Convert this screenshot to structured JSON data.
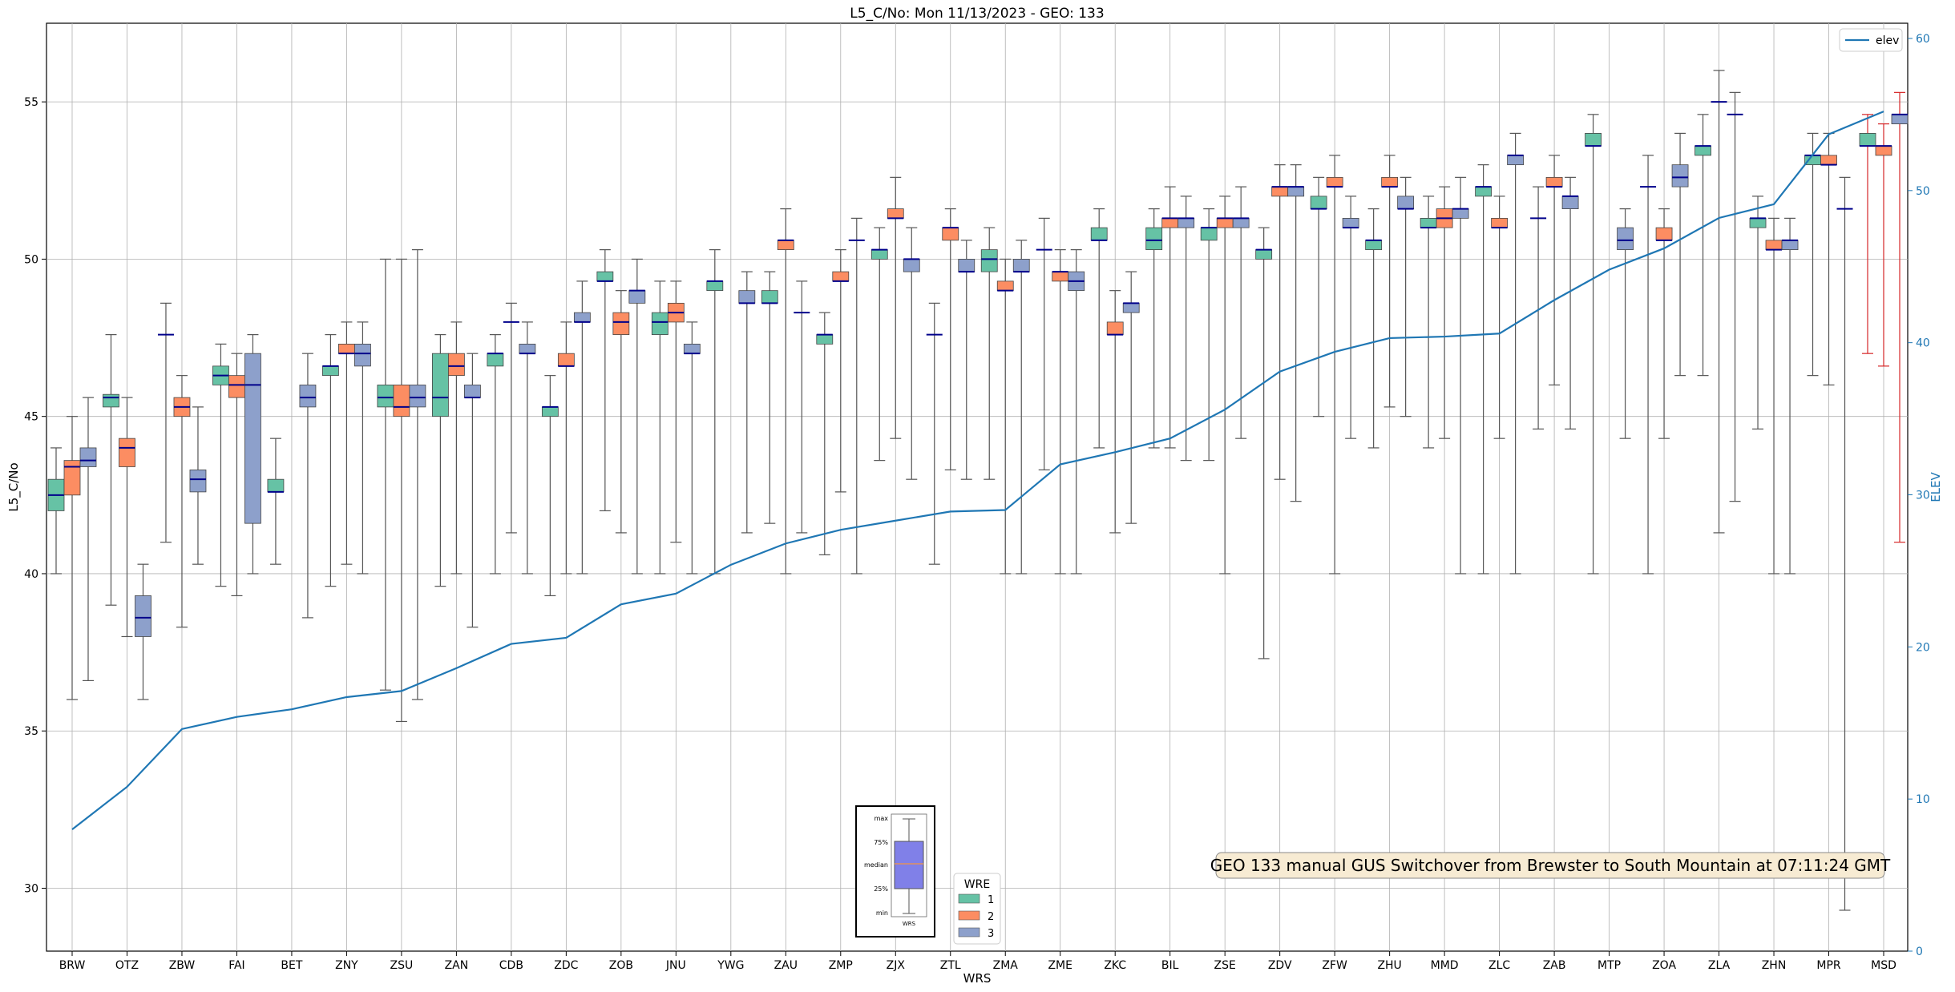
{
  "chart_data": {
    "type": "box",
    "title": "L5_C/No: Mon 11/13/2023 - GEO: 133",
    "xlabel": "WRS",
    "ylabel": "L5_C/No",
    "y2label": "ELEV",
    "ylim": [
      28,
      57.5
    ],
    "y2lim": [
      0,
      61
    ],
    "yticks": [
      30,
      35,
      40,
      45,
      50,
      55
    ],
    "y2ticks": [
      0,
      10,
      20,
      30,
      40,
      50,
      60
    ],
    "grid": true,
    "categories": [
      "BRW",
      "OTZ",
      "ZBW",
      "FAI",
      "BET",
      "ZNY",
      "ZSU",
      "ZAN",
      "CDB",
      "ZDC",
      "ZOB",
      "JNU",
      "YWG",
      "ZAU",
      "ZMP",
      "ZJX",
      "ZTL",
      "ZMA",
      "ZME",
      "ZKC",
      "BIL",
      "ZSE",
      "ZDV",
      "ZFW",
      "ZHU",
      "MMD",
      "ZLC",
      "ZAB",
      "MTP",
      "ZOA",
      "ZLA",
      "ZHN",
      "MPR",
      "MSD"
    ],
    "legend_wre": {
      "title": "WRE",
      "placement": "bottom-center",
      "entries": [
        "1",
        "2",
        "3"
      ]
    },
    "legend_elev": {
      "label": "elev",
      "placement": "top-right"
    },
    "inset_labels": [
      "max",
      "75%",
      "median",
      "25%",
      "min",
      "WRS"
    ],
    "annotation": "GEO 133 manual GUS Switchover from Brewster to South Mountain at 07:11:24 GMT",
    "colors": {
      "wre1": "#66c2a5",
      "wre2": "#fc8d62",
      "wre3": "#8da0cb",
      "median": "#00008b",
      "elev": "#1f77b4",
      "whisker": "#555555",
      "whisker_red": "#d62728"
    },
    "elev": [
      8,
      10.8,
      14.6,
      15.4,
      15.9,
      16.7,
      17.1,
      18.6,
      20.2,
      20.6,
      22.8,
      23.5,
      25.4,
      26.8,
      27.7,
      28.3,
      28.9,
      29.0,
      32.0,
      32.8,
      33.7,
      35.6,
      38.1,
      39.4,
      40.3,
      40.4,
      40.6,
      42.8,
      44.8,
      46.2,
      48.2,
      49.1,
      53.7,
      55.2
    ],
    "boxes": [
      {
        "cat": "BRW",
        "wre": 1,
        "min": 40,
        "q1": 42,
        "med": 42.5,
        "q3": 43,
        "max": 44
      },
      {
        "cat": "BRW",
        "wre": 2,
        "min": 36,
        "q1": 42.5,
        "med": 43.4,
        "q3": 43.6,
        "max": 45
      },
      {
        "cat": "BRW",
        "wre": 3,
        "min": 36.6,
        "q1": 43.4,
        "med": 43.6,
        "q3": 44,
        "max": 45.6
      },
      {
        "cat": "OTZ",
        "wre": 1,
        "min": 39,
        "q1": 45.3,
        "med": 45.6,
        "q3": 45.7,
        "max": 47.6
      },
      {
        "cat": "OTZ",
        "wre": 2,
        "min": 38,
        "q1": 43.4,
        "med": 44,
        "q3": 44.3,
        "max": 45.6
      },
      {
        "cat": "OTZ",
        "wre": 3,
        "min": 36,
        "q1": 38,
        "med": 38.6,
        "q3": 39.3,
        "max": 40.3
      },
      {
        "cat": "ZBW",
        "wre": 1,
        "min": 41,
        "q1": 47.6,
        "med": 47.6,
        "q3": 47.6,
        "max": 48.6
      },
      {
        "cat": "ZBW",
        "wre": 2,
        "min": 38.3,
        "q1": 45,
        "med": 45.3,
        "q3": 45.6,
        "max": 46.3
      },
      {
        "cat": "ZBW",
        "wre": 3,
        "min": 40.3,
        "q1": 42.6,
        "med": 43,
        "q3": 43.3,
        "max": 45.3
      },
      {
        "cat": "FAI",
        "wre": 1,
        "min": 39.6,
        "q1": 46,
        "med": 46.3,
        "q3": 46.6,
        "max": 47.3
      },
      {
        "cat": "FAI",
        "wre": 2,
        "min": 39.3,
        "q1": 45.6,
        "med": 46,
        "q3": 46.3,
        "max": 47
      },
      {
        "cat": "FAI",
        "wre": 3,
        "min": 40,
        "q1": 41.6,
        "med": 46,
        "q3": 47,
        "max": 47.6
      },
      {
        "cat": "BET",
        "wre": 1,
        "min": 40.3,
        "q1": 42.6,
        "med": 42.6,
        "q3": 43,
        "max": 44.3
      },
      {
        "cat": "BET",
        "wre": 3,
        "min": 38.6,
        "q1": 45.3,
        "med": 45.6,
        "q3": 46,
        "max": 47
      },
      {
        "cat": "ZNY",
        "wre": 1,
        "min": 39.6,
        "q1": 46.3,
        "med": 46.6,
        "q3": 46.6,
        "max": 47.6
      },
      {
        "cat": "ZNY",
        "wre": 2,
        "min": 40.3,
        "q1": 47,
        "med": 47,
        "q3": 47.3,
        "max": 48
      },
      {
        "cat": "ZNY",
        "wre": 3,
        "min": 40,
        "q1": 46.6,
        "med": 47,
        "q3": 47.3,
        "max": 48
      },
      {
        "cat": "ZSU",
        "wre": 1,
        "min": 36.3,
        "q1": 45.3,
        "med": 45.6,
        "q3": 46,
        "max": 50
      },
      {
        "cat": "ZSU",
        "wre": 2,
        "min": 35.3,
        "q1": 45,
        "med": 45.3,
        "q3": 46,
        "max": 50
      },
      {
        "cat": "ZSU",
        "wre": 3,
        "min": 36,
        "q1": 45.3,
        "med": 45.6,
        "q3": 46,
        "max": 50.3
      },
      {
        "cat": "ZAN",
        "wre": 1,
        "min": 39.6,
        "q1": 45,
        "med": 45.6,
        "q3": 47,
        "max": 47.6
      },
      {
        "cat": "ZAN",
        "wre": 2,
        "min": 40,
        "q1": 46.3,
        "med": 46.6,
        "q3": 47,
        "max": 48
      },
      {
        "cat": "ZAN",
        "wre": 3,
        "min": 38.3,
        "q1": 45.6,
        "med": 45.6,
        "q3": 46,
        "max": 47
      },
      {
        "cat": "CDB",
        "wre": 1,
        "min": 40,
        "q1": 46.6,
        "med": 47,
        "q3": 47,
        "max": 47.6
      },
      {
        "cat": "CDB",
        "wre": 2,
        "min": 41.3,
        "q1": 48,
        "med": 48,
        "q3": 48,
        "max": 48.6
      },
      {
        "cat": "CDB",
        "wre": 3,
        "min": 40,
        "q1": 47,
        "med": 47,
        "q3": 47.3,
        "max": 48
      },
      {
        "cat": "ZDC",
        "wre": 1,
        "min": 39.3,
        "q1": 45,
        "med": 45.3,
        "q3": 45.3,
        "max": 46.3
      },
      {
        "cat": "ZDC",
        "wre": 2,
        "min": 40,
        "q1": 46.6,
        "med": 46.6,
        "q3": 47,
        "max": 48
      },
      {
        "cat": "ZDC",
        "wre": 3,
        "min": 40,
        "q1": 48,
        "med": 48,
        "q3": 48.3,
        "max": 49.3
      },
      {
        "cat": "ZOB",
        "wre": 1,
        "min": 42,
        "q1": 49.3,
        "med": 49.3,
        "q3": 49.6,
        "max": 50.3
      },
      {
        "cat": "ZOB",
        "wre": 2,
        "min": 41.3,
        "q1": 47.6,
        "med": 48,
        "q3": 48.3,
        "max": 49
      },
      {
        "cat": "ZOB",
        "wre": 3,
        "min": 40,
        "q1": 48.6,
        "med": 49,
        "q3": 49,
        "max": 50
      },
      {
        "cat": "JNU",
        "wre": 1,
        "min": 40,
        "q1": 47.6,
        "med": 48,
        "q3": 48.3,
        "max": 49.3
      },
      {
        "cat": "JNU",
        "wre": 2,
        "min": 41,
        "q1": 48,
        "med": 48.3,
        "q3": 48.6,
        "max": 49.3
      },
      {
        "cat": "JNU",
        "wre": 3,
        "min": 40,
        "q1": 47,
        "med": 47,
        "q3": 47.3,
        "max": 48
      },
      {
        "cat": "YWG",
        "wre": 1,
        "min": 40,
        "q1": 49,
        "med": 49.3,
        "q3": 49.3,
        "max": 50.3
      },
      {
        "cat": "YWG",
        "wre": 3,
        "min": 41.3,
        "q1": 48.6,
        "med": 48.6,
        "q3": 49,
        "max": 49.6
      },
      {
        "cat": "ZAU",
        "wre": 1,
        "min": 41.6,
        "q1": 48.6,
        "med": 48.6,
        "q3": 49,
        "max": 49.6
      },
      {
        "cat": "ZAU",
        "wre": 2,
        "min": 40,
        "q1": 50.3,
        "med": 50.6,
        "q3": 50.6,
        "max": 51.6
      },
      {
        "cat": "ZAU",
        "wre": 3,
        "min": 41.3,
        "q1": 48.3,
        "med": 48.3,
        "q3": 48.3,
        "max": 49.3
      },
      {
        "cat": "ZMP",
        "wre": 1,
        "min": 40.6,
        "q1": 47.3,
        "med": 47.6,
        "q3": 47.6,
        "max": 48.3
      },
      {
        "cat": "ZMP",
        "wre": 2,
        "min": 42.6,
        "q1": 49.3,
        "med": 49.3,
        "q3": 49.6,
        "max": 50.3
      },
      {
        "cat": "ZMP",
        "wre": 3,
        "min": 40,
        "q1": 50.6,
        "med": 50.6,
        "q3": 50.6,
        "max": 51.3
      },
      {
        "cat": "ZJX",
        "wre": 1,
        "min": 43.6,
        "q1": 50,
        "med": 50.3,
        "q3": 50.3,
        "max": 51
      },
      {
        "cat": "ZJX",
        "wre": 2,
        "min": 44.3,
        "q1": 51.3,
        "med": 51.3,
        "q3": 51.6,
        "max": 52.6
      },
      {
        "cat": "ZJX",
        "wre": 3,
        "min": 43,
        "q1": 49.6,
        "med": 50,
        "q3": 50,
        "max": 51
      },
      {
        "cat": "ZTL",
        "wre": 1,
        "min": 40.3,
        "q1": 47.6,
        "med": 47.6,
        "q3": 47.6,
        "max": 48.6
      },
      {
        "cat": "ZTL",
        "wre": 2,
        "min": 43.3,
        "q1": 50.6,
        "med": 51,
        "q3": 51,
        "max": 51.6
      },
      {
        "cat": "ZTL",
        "wre": 3,
        "min": 43,
        "q1": 49.6,
        "med": 49.6,
        "q3": 50,
        "max": 50.6
      },
      {
        "cat": "ZMA",
        "wre": 1,
        "min": 43,
        "q1": 49.6,
        "med": 50,
        "q3": 50.3,
        "max": 51
      },
      {
        "cat": "ZMA",
        "wre": 2,
        "min": 40,
        "q1": 49,
        "med": 49,
        "q3": 49.3,
        "max": 50
      },
      {
        "cat": "ZMA",
        "wre": 3,
        "min": 40,
        "q1": 49.6,
        "med": 49.6,
        "q3": 50,
        "max": 50.6
      },
      {
        "cat": "ZME",
        "wre": 1,
        "min": 43.3,
        "q1": 50.3,
        "med": 50.3,
        "q3": 50.3,
        "max": 51.3
      },
      {
        "cat": "ZME",
        "wre": 2,
        "min": 40,
        "q1": 49.3,
        "med": 49.6,
        "q3": 49.6,
        "max": 50.3
      },
      {
        "cat": "ZME",
        "wre": 3,
        "min": 40,
        "q1": 49,
        "med": 49.3,
        "q3": 49.6,
        "max": 50.3
      },
      {
        "cat": "ZKC",
        "wre": 1,
        "min": 44,
        "q1": 50.6,
        "med": 50.6,
        "q3": 51,
        "max": 51.6
      },
      {
        "cat": "ZKC",
        "wre": 2,
        "min": 41.3,
        "q1": 47.6,
        "med": 47.6,
        "q3": 48,
        "max": 49
      },
      {
        "cat": "ZKC",
        "wre": 3,
        "min": 41.6,
        "q1": 48.3,
        "med": 48.6,
        "q3": 48.6,
        "max": 49.6
      },
      {
        "cat": "BIL",
        "wre": 1,
        "min": 44,
        "q1": 50.3,
        "med": 50.6,
        "q3": 51,
        "max": 51.6
      },
      {
        "cat": "BIL",
        "wre": 2,
        "min": 44,
        "q1": 51,
        "med": 51.3,
        "q3": 51.3,
        "max": 52.3
      },
      {
        "cat": "BIL",
        "wre": 3,
        "min": 43.6,
        "q1": 51,
        "med": 51.3,
        "q3": 51.3,
        "max": 52
      },
      {
        "cat": "ZSE",
        "wre": 1,
        "min": 43.6,
        "q1": 50.6,
        "med": 51,
        "q3": 51,
        "max": 51.6
      },
      {
        "cat": "ZSE",
        "wre": 2,
        "min": 40,
        "q1": 51,
        "med": 51.3,
        "q3": 51.3,
        "max": 52
      },
      {
        "cat": "ZSE",
        "wre": 3,
        "min": 44.3,
        "q1": 51,
        "med": 51.3,
        "q3": 51.3,
        "max": 52.3
      },
      {
        "cat": "ZDV",
        "wre": 1,
        "min": 37.3,
        "q1": 50,
        "med": 50.3,
        "q3": 50.3,
        "max": 51
      },
      {
        "cat": "ZDV",
        "wre": 2,
        "min": 43,
        "q1": 52,
        "med": 52.3,
        "q3": 52.3,
        "max": 53
      },
      {
        "cat": "ZDV",
        "wre": 3,
        "min": 42.3,
        "q1": 52,
        "med": 52.3,
        "q3": 52.3,
        "max": 53
      },
      {
        "cat": "ZFW",
        "wre": 1,
        "min": 45,
        "q1": 51.6,
        "med": 51.6,
        "q3": 52,
        "max": 52.6
      },
      {
        "cat": "ZFW",
        "wre": 2,
        "min": 40,
        "q1": 52.3,
        "med": 52.3,
        "q3": 52.6,
        "max": 53.3
      },
      {
        "cat": "ZFW",
        "wre": 3,
        "min": 44.3,
        "q1": 51,
        "med": 51,
        "q3": 51.3,
        "max": 52
      },
      {
        "cat": "ZHU",
        "wre": 1,
        "min": 44,
        "q1": 50.3,
        "med": 50.6,
        "q3": 50.6,
        "max": 51.6
      },
      {
        "cat": "ZHU",
        "wre": 2,
        "min": 45.3,
        "q1": 52.3,
        "med": 52.3,
        "q3": 52.6,
        "max": 53.3
      },
      {
        "cat": "ZHU",
        "wre": 3,
        "min": 45,
        "q1": 51.6,
        "med": 51.6,
        "q3": 52,
        "max": 52.6
      },
      {
        "cat": "MMD",
        "wre": 1,
        "min": 44,
        "q1": 51,
        "med": 51,
        "q3": 51.3,
        "max": 52
      },
      {
        "cat": "MMD",
        "wre": 2,
        "min": 44.3,
        "q1": 51,
        "med": 51.3,
        "q3": 51.6,
        "max": 52.3
      },
      {
        "cat": "MMD",
        "wre": 3,
        "min": 40,
        "q1": 51.3,
        "med": 51.6,
        "q3": 51.6,
        "max": 52.6
      },
      {
        "cat": "ZLC",
        "wre": 1,
        "min": 40,
        "q1": 52,
        "med": 52.3,
        "q3": 52.3,
        "max": 53
      },
      {
        "cat": "ZLC",
        "wre": 2,
        "min": 44.3,
        "q1": 51,
        "med": 51,
        "q3": 51.3,
        "max": 52
      },
      {
        "cat": "ZLC",
        "wre": 3,
        "min": 40,
        "q1": 53,
        "med": 53.3,
        "q3": 53.3,
        "max": 54
      },
      {
        "cat": "ZAB",
        "wre": 1,
        "min": 44.6,
        "q1": 51.3,
        "med": 51.3,
        "q3": 51.3,
        "max": 52.3
      },
      {
        "cat": "ZAB",
        "wre": 2,
        "min": 46,
        "q1": 52.3,
        "med": 52.3,
        "q3": 52.6,
        "max": 53.3
      },
      {
        "cat": "ZAB",
        "wre": 3,
        "min": 44.6,
        "q1": 51.6,
        "med": 52,
        "q3": 52,
        "max": 52.6
      },
      {
        "cat": "MTP",
        "wre": 1,
        "min": 40,
        "q1": 53.6,
        "med": 53.6,
        "q3": 54,
        "max": 54.6
      },
      {
        "cat": "MTP",
        "wre": 3,
        "min": 44.3,
        "q1": 50.3,
        "med": 50.6,
        "q3": 51,
        "max": 51.6
      },
      {
        "cat": "ZOA",
        "wre": 1,
        "min": 40,
        "q1": 52.3,
        "med": 52.3,
        "q3": 52.3,
        "max": 53.3
      },
      {
        "cat": "ZOA",
        "wre": 2,
        "min": 44.3,
        "q1": 50.6,
        "med": 50.6,
        "q3": 51,
        "max": 51.6
      },
      {
        "cat": "ZOA",
        "wre": 3,
        "min": 46.3,
        "q1": 52.3,
        "med": 52.6,
        "q3": 53,
        "max": 54
      },
      {
        "cat": "ZLA",
        "wre": 1,
        "min": 46.3,
        "q1": 53.3,
        "med": 53.6,
        "q3": 53.6,
        "max": 54.6
      },
      {
        "cat": "ZLA",
        "wre": 2,
        "min": 41.3,
        "q1": 55,
        "med": 55,
        "q3": 55,
        "max": 56
      },
      {
        "cat": "ZLA",
        "wre": 3,
        "min": 42.3,
        "q1": 54.6,
        "med": 54.6,
        "q3": 54.6,
        "max": 55.3
      },
      {
        "cat": "ZHN",
        "wre": 1,
        "min": 44.6,
        "q1": 51,
        "med": 51.3,
        "q3": 51.3,
        "max": 52
      },
      {
        "cat": "ZHN",
        "wre": 2,
        "min": 40,
        "q1": 50.3,
        "med": 50.3,
        "q3": 50.6,
        "max": 51.3
      },
      {
        "cat": "ZHN",
        "wre": 3,
        "min": 40,
        "q1": 50.3,
        "med": 50.6,
        "q3": 50.6,
        "max": 51.3
      },
      {
        "cat": "MPR",
        "wre": 1,
        "min": 46.3,
        "q1": 53,
        "med": 53.3,
        "q3": 53.3,
        "max": 54
      },
      {
        "cat": "MPR",
        "wre": 2,
        "min": 46,
        "q1": 53,
        "med": 53,
        "q3": 53.3,
        "max": 54
      },
      {
        "cat": "MPR",
        "wre": 3,
        "min": 29.3,
        "q1": 51.6,
        "med": 51.6,
        "q3": 51.6,
        "max": 52.6
      },
      {
        "cat": "MSD",
        "wre": 1,
        "min": 47,
        "q1": 53.6,
        "med": 53.6,
        "q3": 54,
        "max": 54.6
      },
      {
        "cat": "MSD",
        "wre": 2,
        "min": 46.6,
        "q1": 53.3,
        "med": 53.6,
        "q3": 53.6,
        "max": 54.3
      },
      {
        "cat": "MSD",
        "wre": 3,
        "min": 41,
        "q1": 54.3,
        "med": 54.6,
        "q3": 54.6,
        "max": 55.3
      }
    ]
  }
}
